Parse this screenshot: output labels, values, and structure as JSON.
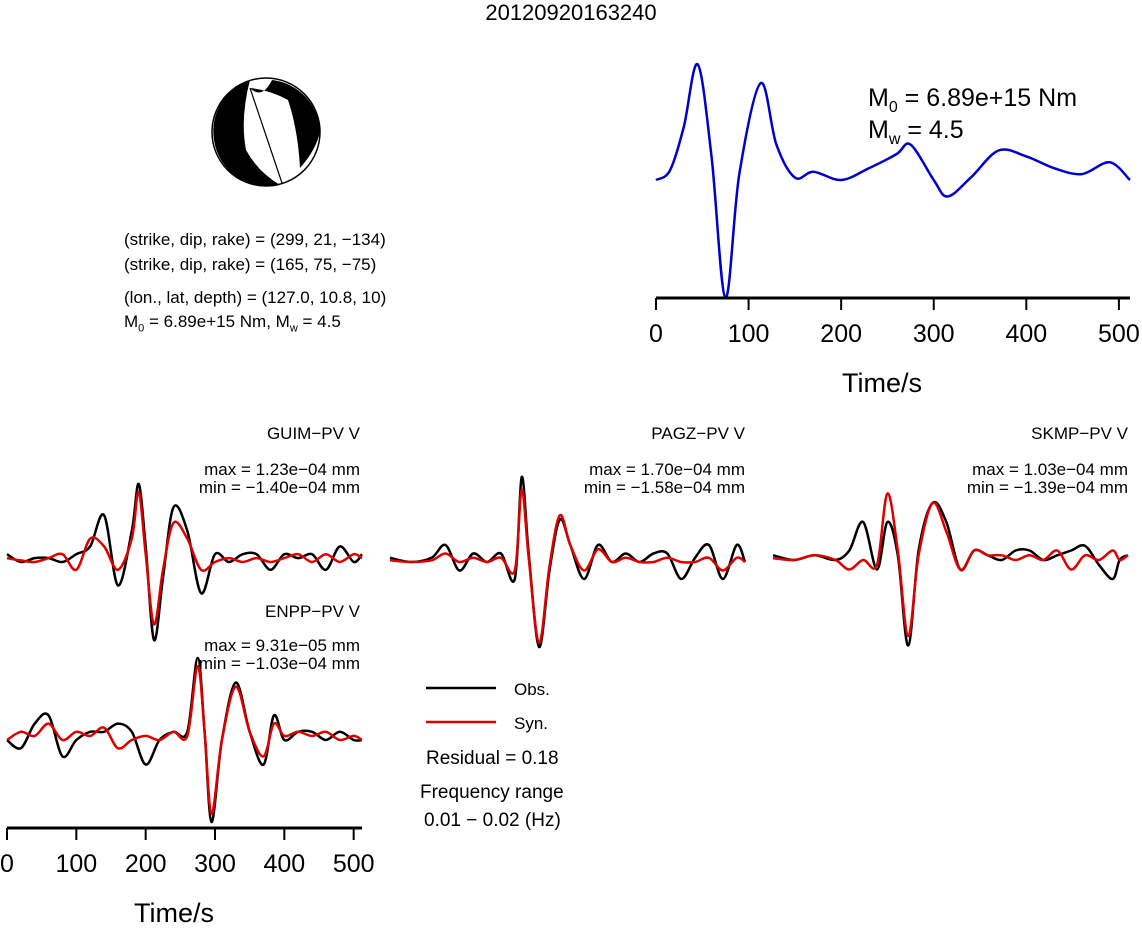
{
  "title": "20120920163240",
  "info": {
    "line1": "(strike, dip, rake) = (299, 21, −134)",
    "line2": "(strike, dip, rake) = (165, 75, −75)",
    "line3": "(lon., lat, depth) = (127.0, 10.8, 10)",
    "line4_m0": "M",
    "line4_sub0": "0",
    "line4_mid": " = 6.89e+15 Nm, M",
    "line4_subw": "w",
    "line4_end": " = 4.5"
  },
  "stf_labels": {
    "m0_sym": "M",
    "m0_sub": "0",
    "m0_val": " = 6.89e+15 Nm",
    "mw_sym": "M",
    "mw_sub": "w",
    "mw_val": " = 4.5"
  },
  "stations": [
    {
      "name": "GUIM−PV V",
      "max": "max = 1.23e−04 mm",
      "min": "min = −1.40e−04 mm"
    },
    {
      "name": "PAGZ−PV V",
      "max": "max = 1.70e−04 mm",
      "min": "min = −1.58e−04 mm"
    },
    {
      "name": "SKMP−PV V",
      "max": "max = 1.03e−04 mm",
      "min": "min = −1.39e−04 mm"
    },
    {
      "name": "ENPP−PV V",
      "max": "max = 9.31e−05 mm",
      "min": "min = −1.03e−04 mm"
    }
  ],
  "legend": {
    "obs": "Obs.",
    "syn": "Syn.",
    "residual": "Residual = 0.18",
    "freq_title": "Frequency range",
    "freq_value": "0.01 − 0.02 (Hz)"
  },
  "colors": {
    "obs": "#000000",
    "syn": "#dd0000",
    "stf": "#0000cc"
  },
  "chart_data": [
    {
      "type": "line",
      "name": "source time function",
      "xlabel": "Time/s",
      "xlim": [
        0,
        512
      ],
      "xticks": [
        0,
        100,
        200,
        300,
        400,
        500
      ],
      "x": [
        0,
        15,
        30,
        45,
        60,
        75,
        90,
        113,
        130,
        150,
        170,
        200,
        230,
        260,
        275,
        300,
        315,
        340,
        370,
        400,
        430,
        460,
        490,
        512
      ],
      "values": [
        0,
        0.08,
        0.45,
        0.98,
        0.2,
        -1.0,
        0.05,
        0.82,
        0.3,
        0.02,
        0.07,
        0.0,
        0.1,
        0.22,
        0.3,
        0.0,
        -0.14,
        0.02,
        0.25,
        0.2,
        0.1,
        0.05,
        0.15,
        0.0
      ]
    },
    {
      "type": "line",
      "name": "GUIM−PV V",
      "xlim": [
        0,
        512
      ],
      "series": [
        {
          "name": "Obs.",
          "x": [
            0,
            20,
            40,
            60,
            80,
            100,
            120,
            140,
            160,
            180,
            190,
            200,
            212,
            225,
            240,
            260,
            280,
            300,
            320,
            340,
            360,
            380,
            400,
            420,
            440,
            460,
            480,
            500,
            512
          ],
          "values": [
            0.1,
            0.0,
            0.05,
            0.05,
            0.0,
            0.1,
            0.2,
            0.6,
            -0.3,
            0.4,
            1.0,
            0.2,
            -1.0,
            -0.2,
            0.7,
            0.4,
            -0.4,
            0.1,
            0.0,
            0.1,
            0.1,
            -0.1,
            0.1,
            0.05,
            0.1,
            -0.1,
            0.2,
            0.0,
            0.1
          ]
        },
        {
          "name": "Syn.",
          "x": [
            0,
            20,
            40,
            60,
            80,
            100,
            120,
            140,
            160,
            180,
            190,
            200,
            212,
            225,
            240,
            260,
            280,
            300,
            320,
            340,
            360,
            380,
            400,
            420,
            440,
            460,
            480,
            500,
            512
          ],
          "values": [
            0.05,
            0.02,
            0.0,
            0.05,
            0.1,
            -0.1,
            0.3,
            0.2,
            -0.1,
            0.3,
            0.9,
            0.1,
            -0.8,
            -0.1,
            0.5,
            0.3,
            -0.1,
            0.0,
            0.05,
            0.0,
            0.05,
            0.0,
            0.05,
            0.1,
            0.0,
            0.1,
            0.0,
            0.1,
            0.05
          ]
        }
      ]
    },
    {
      "type": "line",
      "name": "PAGZ−PV V",
      "xlim": [
        0,
        512
      ],
      "series": [
        {
          "name": "Obs.",
          "x": [
            0,
            30,
            60,
            80,
            100,
            120,
            140,
            160,
            180,
            190,
            200,
            215,
            230,
            245,
            260,
            280,
            300,
            320,
            340,
            360,
            380,
            400,
            420,
            440,
            460,
            480,
            500,
            512
          ],
          "values": [
            0.05,
            0.0,
            0.05,
            0.2,
            -0.1,
            0.1,
            0.0,
            0.1,
            -0.2,
            1.0,
            0.1,
            -1.0,
            -0.1,
            0.5,
            0.2,
            -0.2,
            0.2,
            0.0,
            0.1,
            0.0,
            0.1,
            0.1,
            -0.2,
            0.05,
            0.2,
            -0.2,
            0.2,
            0.0
          ]
        },
        {
          "name": "Syn.",
          "x": [
            0,
            30,
            60,
            80,
            100,
            120,
            140,
            160,
            180,
            190,
            200,
            215,
            230,
            245,
            260,
            280,
            300,
            320,
            340,
            360,
            380,
            400,
            420,
            440,
            460,
            480,
            500,
            512
          ],
          "values": [
            0.02,
            0.0,
            0.02,
            0.1,
            0.0,
            0.05,
            0.0,
            0.05,
            -0.1,
            0.85,
            0.05,
            -0.95,
            -0.05,
            0.55,
            0.2,
            -0.1,
            0.15,
            0.0,
            0.05,
            0.0,
            0.0,
            0.05,
            0.0,
            0.0,
            0.05,
            -0.1,
            0.05,
            0.0
          ]
        }
      ]
    },
    {
      "type": "line",
      "name": "SKMP−PV V",
      "xlim": [
        0,
        512
      ],
      "series": [
        {
          "name": "Obs.",
          "x": [
            0,
            30,
            60,
            90,
            110,
            130,
            150,
            165,
            180,
            195,
            210,
            230,
            250,
            270,
            290,
            310,
            330,
            350,
            370,
            390,
            410,
            430,
            450,
            470,
            490,
            500,
            512
          ],
          "values": [
            0.05,
            0.0,
            0.05,
            0.0,
            0.1,
            0.4,
            -0.1,
            0.4,
            0.05,
            -0.9,
            0.1,
            0.6,
            0.4,
            -0.1,
            0.1,
            0.05,
            0.0,
            0.1,
            0.1,
            0.0,
            0.05,
            0.1,
            0.15,
            -0.05,
            -0.2,
            0.0,
            0.05
          ]
        },
        {
          "name": "Syn.",
          "x": [
            0,
            30,
            60,
            90,
            110,
            130,
            150,
            165,
            180,
            195,
            210,
            230,
            250,
            270,
            290,
            310,
            330,
            350,
            370,
            390,
            410,
            430,
            450,
            470,
            490,
            500,
            512
          ],
          "values": [
            0.02,
            0.0,
            0.05,
            0.0,
            -0.1,
            0.0,
            -0.05,
            0.7,
            0.1,
            -0.8,
            0.05,
            0.6,
            0.3,
            -0.1,
            0.1,
            0.05,
            0.05,
            0.0,
            0.05,
            0.0,
            0.1,
            -0.1,
            0.05,
            0.0,
            0.1,
            0.0,
            0.05
          ]
        }
      ]
    },
    {
      "type": "line",
      "name": "ENPP−PV V",
      "xlabel": "Time/s",
      "xlim": [
        0,
        512
      ],
      "xticks": [
        0,
        100,
        200,
        300,
        400,
        500
      ],
      "series": [
        {
          "name": "Obs.",
          "x": [
            0,
            20,
            40,
            60,
            80,
            100,
            120,
            140,
            160,
            180,
            200,
            220,
            240,
            260,
            275,
            285,
            295,
            310,
            330,
            350,
            370,
            385,
            400,
            420,
            440,
            460,
            480,
            500,
            512
          ],
          "values": [
            0.0,
            -0.1,
            0.2,
            0.3,
            -0.2,
            0.0,
            0.1,
            0.1,
            0.2,
            0.1,
            -0.3,
            0.0,
            0.1,
            0.1,
            1.0,
            0.1,
            -1.0,
            0.0,
            0.7,
            0.1,
            -0.3,
            0.3,
            0.0,
            0.1,
            0.1,
            0.0,
            0.1,
            0.0,
            0.0
          ]
        },
        {
          "name": "Syn.",
          "x": [
            0,
            20,
            40,
            60,
            80,
            100,
            120,
            140,
            160,
            180,
            200,
            220,
            240,
            260,
            275,
            285,
            295,
            310,
            330,
            350,
            370,
            385,
            400,
            420,
            440,
            460,
            480,
            500,
            512
          ],
          "values": [
            0.0,
            0.1,
            0.05,
            0.2,
            0.0,
            0.1,
            0.05,
            0.15,
            -0.1,
            0.0,
            0.05,
            0.0,
            0.1,
            0.05,
            0.9,
            0.1,
            -0.9,
            0.0,
            0.65,
            0.1,
            -0.2,
            0.2,
            0.05,
            0.1,
            0.05,
            0.1,
            0.0,
            0.05,
            0.0
          ]
        }
      ]
    }
  ]
}
